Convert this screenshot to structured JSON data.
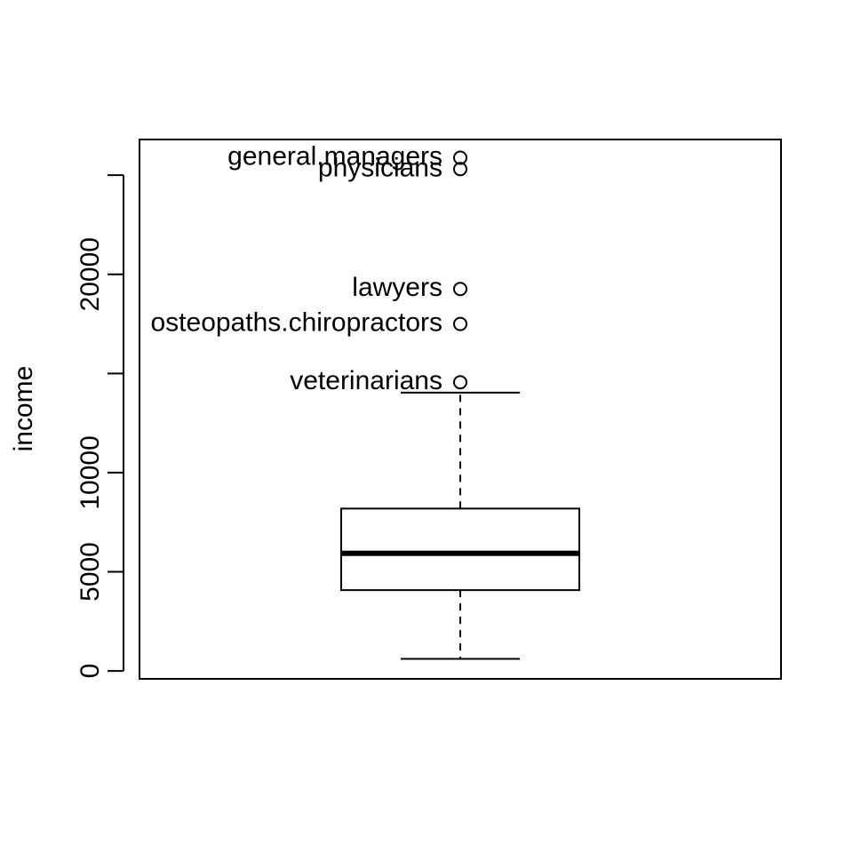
{
  "chart_data": {
    "type": "boxplot",
    "title": "",
    "xlabel": "",
    "ylabel": "income",
    "ylim": [
      -400,
      26800
    ],
    "yticks": [
      0,
      5000,
      10000,
      15000,
      20000,
      25000
    ],
    "ytick_labels": [
      "0",
      "5000",
      "10000",
      "",
      "20000",
      ""
    ],
    "grid": false,
    "box": {
      "whisker_low": 611,
      "q1": 4075,
      "median": 5930,
      "q3": 8187,
      "whisker_high": 14032
    },
    "outliers": [
      {
        "label": "general.managers",
        "value": 25879
      },
      {
        "label": "physicians",
        "value": 25308
      },
      {
        "label": "lawyers",
        "value": 19263
      },
      {
        "label": "osteopaths.chiropractors",
        "value": 17498
      },
      {
        "label": "veterinarians",
        "value": 14558
      }
    ],
    "style": {
      "color": "#000000"
    }
  }
}
